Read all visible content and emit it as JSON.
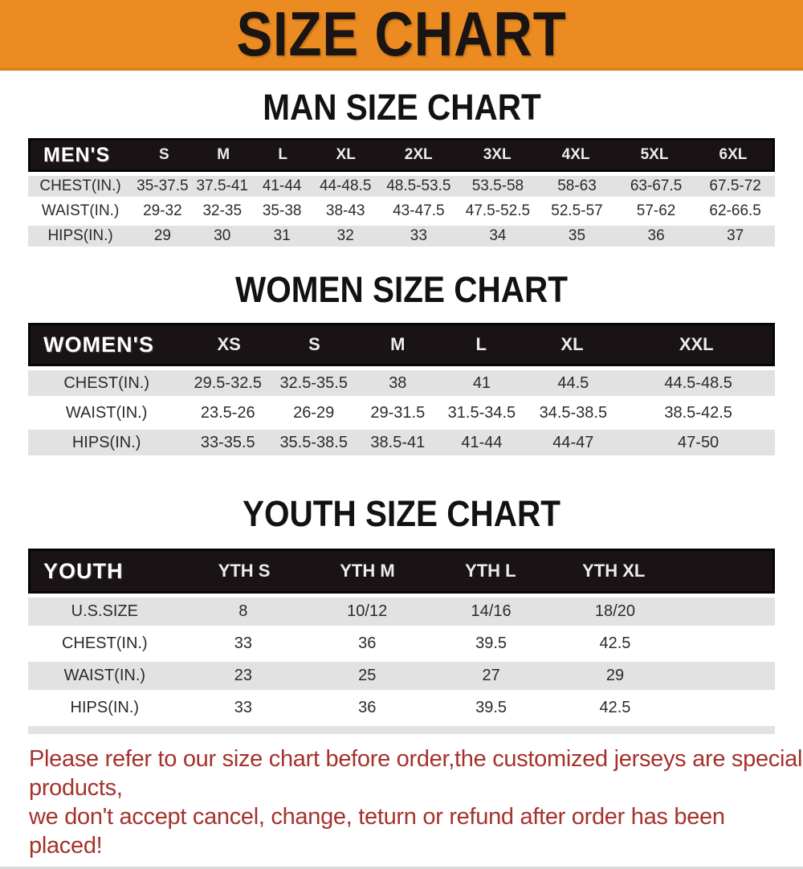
{
  "banner": {
    "title": "SIZE CHART"
  },
  "chart_data": [
    {
      "type": "table",
      "title": "MAN SIZE CHART",
      "corner_label": "MEN'S",
      "columns": [
        "S",
        "M",
        "L",
        "XL",
        "2XL",
        "3XL",
        "4XL",
        "5XL",
        "6XL"
      ],
      "row_labels": [
        "CHEST(IN.)",
        "WAIST(IN.)",
        "HIPS(IN.)"
      ],
      "rows": [
        [
          "35-37.5",
          "37.5-41",
          "41-44",
          "44-48.5",
          "48.5-53.5",
          "53.5-58",
          "58-63",
          "63-67.5",
          "67.5-72"
        ],
        [
          "29-32",
          "32-35",
          "35-38",
          "38-43",
          "43-47.5",
          "47.5-52.5",
          "52.5-57",
          "57-62",
          "62-66.5"
        ],
        [
          "29",
          "30",
          "31",
          "32",
          "33",
          "34",
          "35",
          "36",
          "37"
        ]
      ]
    },
    {
      "type": "table",
      "title": "WOMEN SIZE CHART",
      "corner_label": "WOMEN'S",
      "columns": [
        "XS",
        "S",
        "M",
        "L",
        "XL",
        "XXL"
      ],
      "row_labels": [
        "CHEST(IN.)",
        "WAIST(IN.)",
        "HIPS(IN.)"
      ],
      "rows": [
        [
          "29.5-32.5",
          "32.5-35.5",
          "38",
          "41",
          "44.5",
          "44.5-48.5"
        ],
        [
          "23.5-26",
          "26-29",
          "29-31.5",
          "31.5-34.5",
          "34.5-38.5",
          "38.5-42.5"
        ],
        [
          "33-35.5",
          "35.5-38.5",
          "38.5-41",
          "41-44",
          "44-47",
          "47-50"
        ]
      ]
    },
    {
      "type": "table",
      "title": "YOUTH SIZE CHART",
      "corner_label": "YOUTH",
      "columns": [
        "YTH S",
        "YTH M",
        "YTH L",
        "YTH XL"
      ],
      "row_labels": [
        "U.S.SIZE",
        "CHEST(IN.)",
        "WAIST(IN.)",
        "HIPS(IN.)"
      ],
      "rows": [
        [
          "8",
          "10/12",
          "14/16",
          "18/20"
        ],
        [
          "33",
          "36",
          "39.5",
          "42.5"
        ],
        [
          "23",
          "25",
          "27",
          "29"
        ],
        [
          "33",
          "36",
          "39.5",
          "42.5"
        ]
      ]
    }
  ],
  "footer": {
    "line1": "Please refer to our size chart before order,the customized jerseys are special products,",
    "line2": "we don't accept cancel, change, teturn or refund after order has been placed!"
  },
  "colors": {
    "banner_bg": "#EC8B21",
    "banner_text": "#1A1512",
    "heading_text": "#121212",
    "header_bg": "#1A1316",
    "header_border": "#070405",
    "header_text": "#F2F2F2",
    "stripe": "#E2E2E3",
    "row_text": "#2B2B2B",
    "footer_text": "#A5322B"
  }
}
